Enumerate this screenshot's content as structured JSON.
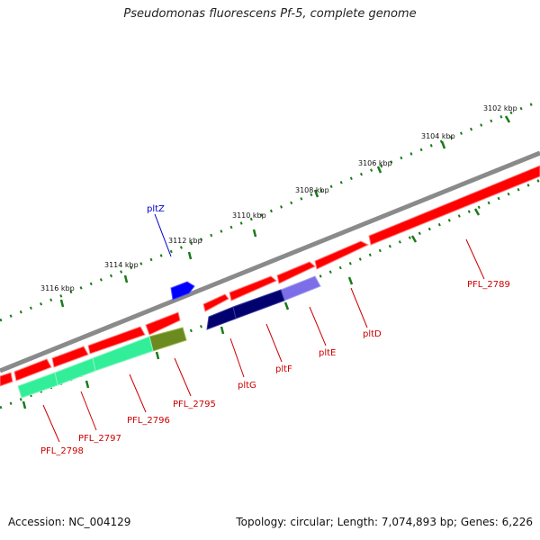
{
  "title": "Pseudomonas fluorescens Pf-5, complete genome",
  "footer": {
    "accession": "Accession: NC_004129",
    "summary": "Topology: circular; Length: 7,074,893 bp; Genes: 6,226"
  },
  "colors": {
    "backbone": "#8a8a8a",
    "tick": "#1a7a1a",
    "label_red": "#cc0000",
    "label_blue": "#0000cc",
    "gene_red": "#ff0000",
    "gene_navy": "#00006e",
    "gene_lavender": "#7b6ee8",
    "gene_blue": "#0000ff",
    "gene_cyan": "#33ee99",
    "gene_olive": "#6b8a20"
  },
  "scale_labels": [
    "3102 kbp",
    "3104 kbp",
    "3106 kbp",
    "3108 kbp",
    "3110 kbp",
    "3112 kbp",
    "3114 kbp",
    "3116 kbp"
  ],
  "gene_labels": [
    {
      "text": "pltZ",
      "color": "blue"
    },
    {
      "text": "PFL_2789",
      "color": "red"
    },
    {
      "text": "pltD",
      "color": "red"
    },
    {
      "text": "pltE",
      "color": "red"
    },
    {
      "text": "pltF",
      "color": "red"
    },
    {
      "text": "pltG",
      "color": "red"
    },
    {
      "text": "PFL_2795",
      "color": "red"
    },
    {
      "text": "PFL_2796",
      "color": "red"
    },
    {
      "text": "PFL_2797",
      "color": "red"
    },
    {
      "text": "PFL_2798",
      "color": "red"
    }
  ]
}
